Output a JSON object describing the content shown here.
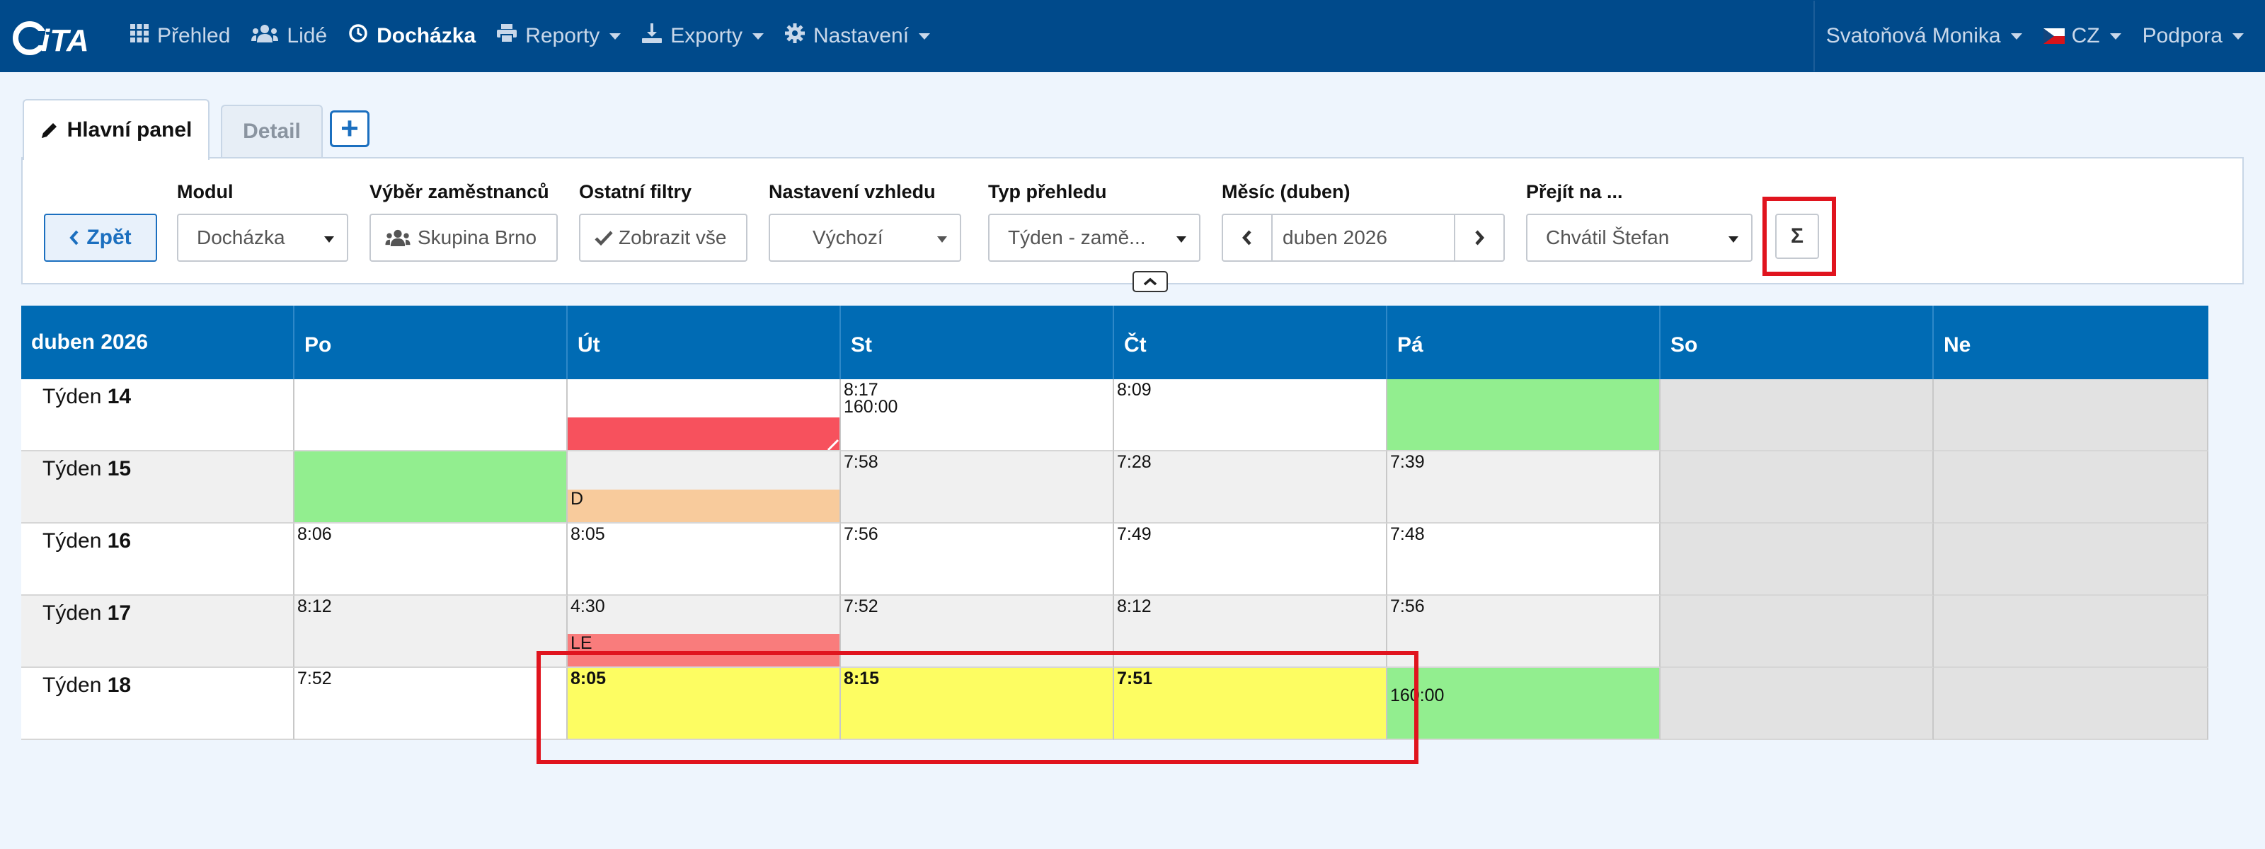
{
  "navbar": {
    "logo_text": "iTA",
    "items": [
      {
        "label": "Přehled",
        "icon": "grid-icon",
        "active": false,
        "dropdown": false
      },
      {
        "label": "Lidé",
        "icon": "users-icon",
        "active": false,
        "dropdown": false
      },
      {
        "label": "Docházka",
        "icon": "clock-icon",
        "active": true,
        "dropdown": false
      },
      {
        "label": "Reporty",
        "icon": "print-icon",
        "active": false,
        "dropdown": true
      },
      {
        "label": "Exporty",
        "icon": "export-icon",
        "active": false,
        "dropdown": true
      },
      {
        "label": "Nastavení",
        "icon": "gear-icon",
        "active": false,
        "dropdown": true
      }
    ],
    "user": "Svatoňová Monika",
    "language": "CZ",
    "support": "Podpora"
  },
  "tabs": {
    "main": "Hlavní panel",
    "detail": "Detail",
    "add": "+"
  },
  "filters": {
    "back_label": "Zpět",
    "module": {
      "label": "Modul",
      "value": "Docházka"
    },
    "employees": {
      "label": "Výběr zaměstnanců",
      "value": "Skupina Brno"
    },
    "other": {
      "label": "Ostatní filtry",
      "value": "Zobrazit vše"
    },
    "appearance": {
      "label": "Nastavení vzhledu",
      "value": "Výchozí"
    },
    "overview_type": {
      "label": "Typ přehledu",
      "value": "Týden - zamě..."
    },
    "month": {
      "label": "Měsíc (duben)",
      "value": "duben 2026"
    },
    "goto": {
      "label": "Přejít na ...",
      "value": "Chvátil Štefan"
    },
    "sigma": "Σ"
  },
  "calendar": {
    "month_title": "duben 2026",
    "days": [
      "Po",
      "Út",
      "St",
      "Čt",
      "Pá",
      "So",
      "Ne"
    ],
    "week_word": "Týden",
    "weeks": [
      {
        "number": "14",
        "cells": [
          {
            "time": "",
            "extra": "",
            "bg": "white",
            "bar": "",
            "bar_color": "",
            "bold": false
          },
          {
            "time": "",
            "extra": "",
            "bg": "white",
            "bar": "",
            "bar_color": "#f7515d",
            "bold": false
          },
          {
            "time": "8:17",
            "extra": "160:00",
            "bg": "white",
            "bar": "",
            "bar_color": "",
            "bold": false
          },
          {
            "time": "8:09",
            "extra": "",
            "bg": "white",
            "bar": "",
            "bar_color": "",
            "bold": false
          },
          {
            "time": "",
            "extra": "",
            "bg": "#92ee8f",
            "bar": "",
            "bar_color": "",
            "bold": false
          },
          {
            "time": "",
            "extra": "",
            "bg": "#e2e2e2",
            "bar": "",
            "bar_color": "",
            "bold": false
          },
          {
            "time": "",
            "extra": "",
            "bg": "#e2e2e2",
            "bar": "",
            "bar_color": "",
            "bold": false
          }
        ]
      },
      {
        "number": "15",
        "cells": [
          {
            "time": "",
            "extra": "",
            "bg": "#92ee8f",
            "bar": "",
            "bar_color": "",
            "bold": false
          },
          {
            "time": "",
            "extra": "",
            "bg": "#f0f0f0",
            "bar": "D",
            "bar_color": "#f8cb9c",
            "bold": false
          },
          {
            "time": "7:58",
            "extra": "",
            "bg": "#f0f0f0",
            "bar": "",
            "bar_color": "",
            "bold": false
          },
          {
            "time": "7:28",
            "extra": "",
            "bg": "#f0f0f0",
            "bar": "",
            "bar_color": "",
            "bold": false
          },
          {
            "time": "7:39",
            "extra": "",
            "bg": "#f0f0f0",
            "bar": "",
            "bar_color": "",
            "bold": false
          },
          {
            "time": "",
            "extra": "",
            "bg": "#e2e2e2",
            "bar": "",
            "bar_color": "",
            "bold": false
          },
          {
            "time": "",
            "extra": "",
            "bg": "#e2e2e2",
            "bar": "",
            "bar_color": "",
            "bold": false
          }
        ]
      },
      {
        "number": "16",
        "cells": [
          {
            "time": "8:06",
            "extra": "",
            "bg": "white",
            "bar": "",
            "bar_color": "",
            "bold": false
          },
          {
            "time": "8:05",
            "extra": "",
            "bg": "white",
            "bar": "",
            "bar_color": "",
            "bold": false
          },
          {
            "time": "7:56",
            "extra": "",
            "bg": "white",
            "bar": "",
            "bar_color": "",
            "bold": false
          },
          {
            "time": "7:49",
            "extra": "",
            "bg": "white",
            "bar": "",
            "bar_color": "",
            "bold": false
          },
          {
            "time": "7:48",
            "extra": "",
            "bg": "white",
            "bar": "",
            "bar_color": "",
            "bold": false
          },
          {
            "time": "",
            "extra": "",
            "bg": "#e2e2e2",
            "bar": "",
            "bar_color": "",
            "bold": false
          },
          {
            "time": "",
            "extra": "",
            "bg": "#e2e2e2",
            "bar": "",
            "bar_color": "",
            "bold": false
          }
        ]
      },
      {
        "number": "17",
        "cells": [
          {
            "time": "8:12",
            "extra": "",
            "bg": "#f0f0f0",
            "bar": "",
            "bar_color": "",
            "bold": false
          },
          {
            "time": "4:30",
            "extra": "",
            "bg": "#f0f0f0",
            "bar": "LE",
            "bar_color": "#f97c7c",
            "bold": false
          },
          {
            "time": "7:52",
            "extra": "",
            "bg": "#f0f0f0",
            "bar": "",
            "bar_color": "",
            "bold": false
          },
          {
            "time": "8:12",
            "extra": "",
            "bg": "#f0f0f0",
            "bar": "",
            "bar_color": "",
            "bold": false
          },
          {
            "time": "7:56",
            "extra": "",
            "bg": "#f0f0f0",
            "bar": "",
            "bar_color": "",
            "bold": false
          },
          {
            "time": "",
            "extra": "",
            "bg": "#e2e2e2",
            "bar": "",
            "bar_color": "",
            "bold": false
          },
          {
            "time": "",
            "extra": "",
            "bg": "#e2e2e2",
            "bar": "",
            "bar_color": "",
            "bold": false
          }
        ]
      },
      {
        "number": "18",
        "cells": [
          {
            "time": "7:52",
            "extra": "",
            "bg": "white",
            "bar": "",
            "bar_color": "",
            "bold": false
          },
          {
            "time": "8:05",
            "extra": "",
            "bg": "#fdfd62",
            "bar": "",
            "bar_color": "",
            "bold": true
          },
          {
            "time": "8:15",
            "extra": "",
            "bg": "#fdfd62",
            "bar": "",
            "bar_color": "",
            "bold": true
          },
          {
            "time": "7:51",
            "extra": "",
            "bg": "#fdfd62",
            "bar": "",
            "bar_color": "",
            "bold": true
          },
          {
            "time": "",
            "extra": "160:00",
            "bg": "#92ee8f",
            "bar": "",
            "bar_color": "",
            "bold": false
          },
          {
            "time": "",
            "extra": "",
            "bg": "#e2e2e2",
            "bar": "",
            "bar_color": "",
            "bold": false
          },
          {
            "time": "",
            "extra": "",
            "bg": "#e2e2e2",
            "bar": "",
            "bar_color": "",
            "bold": false
          }
        ]
      }
    ]
  },
  "colors": {
    "navbar_bg": "#004a8b",
    "header_bg": "#006bb4",
    "accent": "#1b6fbf",
    "highlight_red": "#e0141e"
  }
}
